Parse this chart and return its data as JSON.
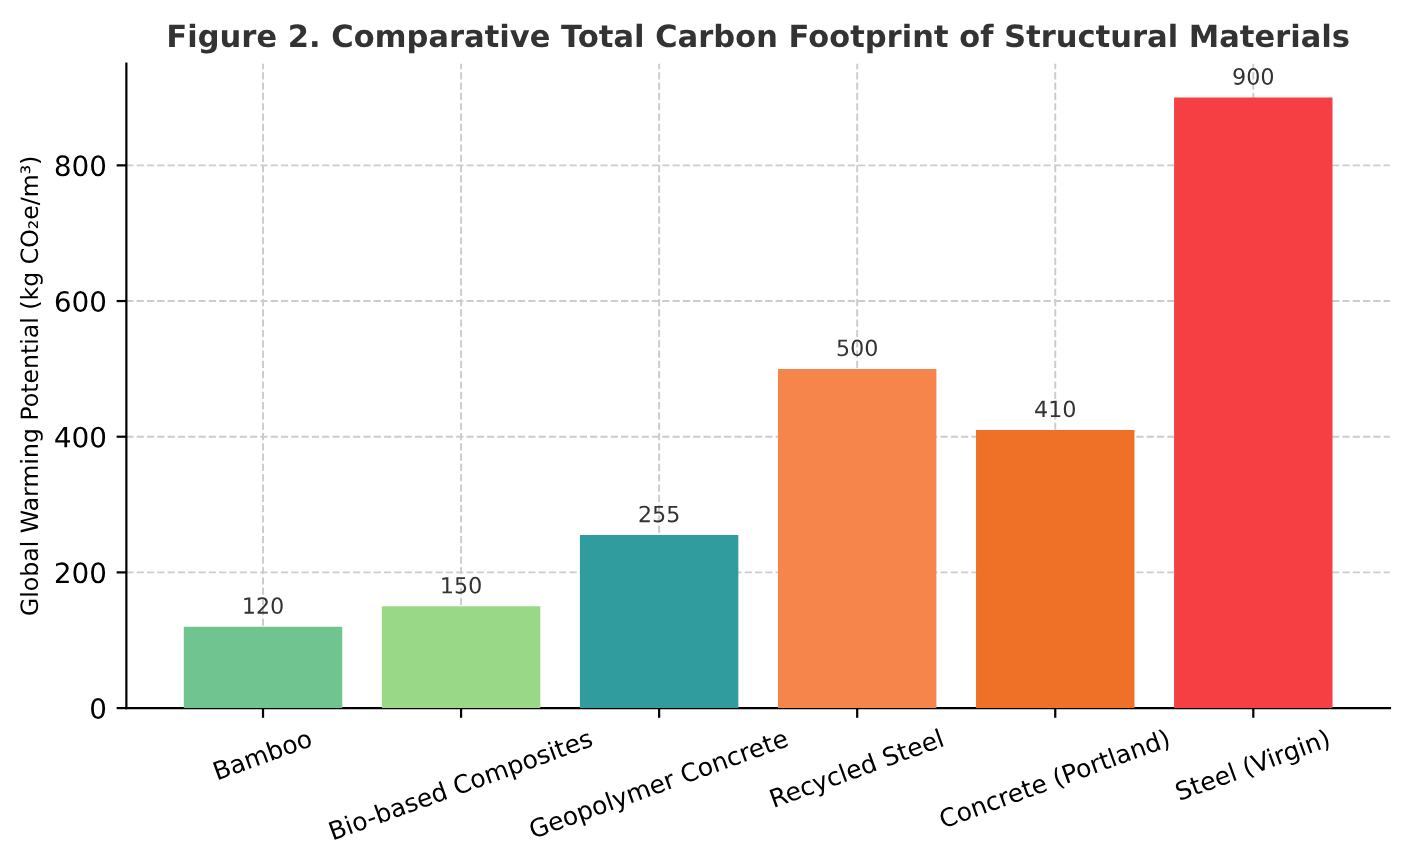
{
  "chart_data": {
    "type": "bar",
    "title": "Figure 2. Comparative Total Carbon Footprint of Structural Materials",
    "ylabel": "Global Warming Potential (kg CO₂e/m³)",
    "categories": [
      "Bamboo",
      "Bio-based Composites",
      "Geopolymer Concrete",
      "Recycled Steel",
      "Concrete (Portland)",
      "Steel (Virgin)"
    ],
    "values": [
      120,
      150,
      255,
      500,
      410,
      900
    ],
    "colors": [
      "#6fc490",
      "#98d887",
      "#319c9e",
      "#f5854a",
      "#ef7127",
      "#f53f42"
    ],
    "ylim": [
      0,
      950
    ],
    "yticks": [
      0,
      200,
      400,
      600,
      800
    ],
    "grid": true,
    "data_labels": true
  }
}
